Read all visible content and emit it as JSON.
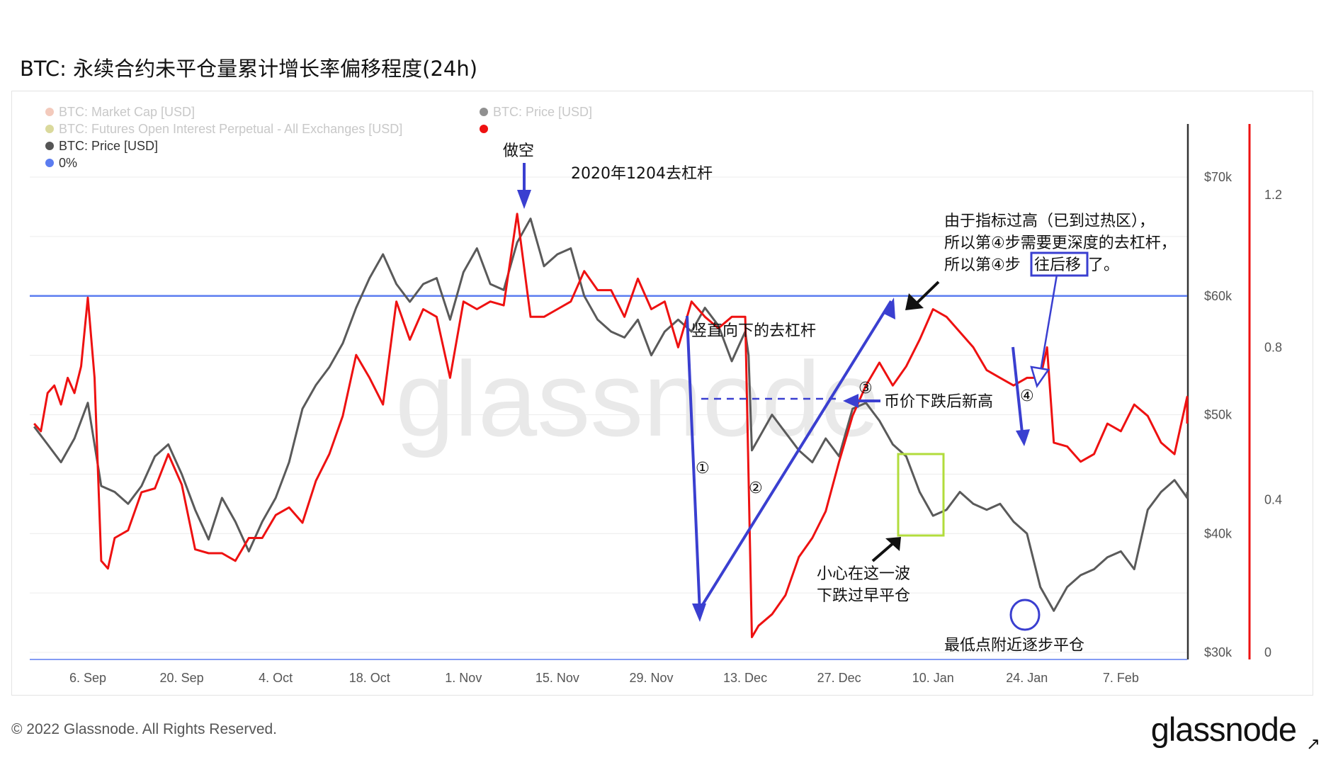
{
  "title": "BTC: 永续合约未平仓量累计增长率偏移程度(24h)",
  "footer": {
    "copyright": "© 2022 Glassnode. All Rights Reserved.",
    "brand": "glassnode"
  },
  "watermark": "glassnode",
  "legend": {
    "items": [
      {
        "label": "BTC: Market Cap [USD]",
        "color": "#e8957a",
        "faded": true
      },
      {
        "label": "BTC: Futures Open Interest Perpetual - All Exchanges [USD]",
        "color": "#b6b43a",
        "faded": true
      },
      {
        "label": "BTC: Price [USD]",
        "color": "#555555",
        "faded": false
      },
      {
        "label": "0%",
        "color": "#5b7cf0",
        "faded": false
      },
      {
        "label": "BTC: Price [USD]",
        "color": "#222222",
        "faded": true
      },
      {
        "label": "",
        "color": "#ee1111",
        "faded": false
      }
    ]
  },
  "colors": {
    "price": "#5a5a5a",
    "indicator": "#ee1111",
    "zero_line": "#5b7cf0",
    "annotation": "#3a3fd0",
    "box": "#b2dc3c"
  },
  "annotations": {
    "main_title": "2020年1204去杠杆",
    "short": "做空",
    "vertical": "竖直向下的去杠杆",
    "new_high": "币价下跌后新高",
    "note_line1": "由于指标过高（已到过热区），",
    "note_line2": "所以第④步需要更深度的去杠杆，",
    "note_line3": "所以第④步",
    "note_highlight": "往后移",
    "note_line3_end": "了。",
    "careful_line1": "小心在这一波",
    "careful_line2": "下跌过早平仓",
    "lowest": "最低点附近逐步平仓",
    "step1": "①",
    "step2": "②",
    "step3": "③",
    "step4": "④"
  },
  "chart_data": {
    "type": "line",
    "x_ticks": [
      "6. Sep",
      "20. Sep",
      "4. Oct",
      "18. Oct",
      "1. Nov",
      "15. Nov",
      "29. Nov",
      "13. Dec",
      "27. Dec",
      "10. Jan",
      "24. Jan",
      "7. Feb"
    ],
    "x_range_days": [
      -8,
      166
    ],
    "y_left_ticks": [
      "$70k",
      "$60k",
      "$50k",
      "$40k",
      "$30k"
    ],
    "y_left_range": [
      30000,
      70000
    ],
    "y_right_ticks": [
      "1.2",
      "0.8",
      "0.4",
      "0"
    ],
    "y_right_range": [
      0,
      1.2
    ],
    "zero_line_value": 60000,
    "series": [
      {
        "name": "BTC: Price [USD]",
        "axis": "left",
        "color": "#5a5a5a",
        "x": [
          -8,
          -6,
          -4,
          -2,
          0,
          2,
          4,
          6,
          8,
          10,
          12,
          14,
          16,
          18,
          20,
          22,
          24,
          26,
          28,
          30,
          32,
          34,
          36,
          38,
          40,
          42,
          44,
          46,
          48,
          50,
          52,
          54,
          56,
          58,
          60,
          62,
          64,
          66,
          68,
          70,
          72,
          74,
          76,
          78,
          80,
          82,
          84,
          86,
          88,
          90,
          92,
          94,
          96,
          98,
          98.5,
          99,
          100,
          102,
          104,
          106,
          108,
          110,
          112,
          114,
          116,
          118,
          120,
          122,
          124,
          126,
          128,
          130,
          132,
          134,
          136,
          138,
          140,
          142,
          144,
          146,
          148,
          150,
          152,
          154,
          156,
          158,
          160,
          162,
          164,
          166
        ],
        "y": [
          49000,
          47500,
          46000,
          48000,
          51000,
          44000,
          43500,
          42500,
          44000,
          46500,
          47500,
          45000,
          42000,
          39500,
          43000,
          41000,
          38500,
          41000,
          43000,
          46000,
          50500,
          52500,
          54000,
          56000,
          59000,
          61500,
          63500,
          61000,
          59500,
          61000,
          61500,
          58000,
          62000,
          64000,
          61000,
          60500,
          64500,
          66500,
          62500,
          63500,
          64000,
          60000,
          58000,
          57000,
          56500,
          58000,
          55000,
          57000,
          58000,
          57000,
          59000,
          57500,
          54500,
          57000,
          55000,
          47000,
          48000,
          50000,
          48500,
          47000,
          46000,
          48000,
          46500,
          50500,
          51000,
          49500,
          47500,
          46500,
          43500,
          41500,
          42000,
          43500,
          42500,
          42000,
          42500,
          41000,
          40000,
          35500,
          33500,
          35500,
          36500,
          37000,
          38000,
          38500,
          37000,
          42000,
          43500,
          44500,
          43000,
          43500
        ]
      },
      {
        "name": "",
        "axis": "right",
        "color": "#ee1111",
        "x": [
          -8,
          -7,
          -6,
          -5,
          -4,
          -3,
          -2,
          -1,
          0,
          1,
          2,
          3,
          4,
          6,
          8,
          10,
          12,
          14,
          16,
          18,
          20,
          22,
          24,
          26,
          28,
          30,
          32,
          34,
          36,
          38,
          40,
          42,
          44,
          46,
          48,
          50,
          52,
          54,
          56,
          58,
          60,
          62,
          64,
          66,
          68,
          70,
          72,
          74,
          76,
          78,
          80,
          82,
          84,
          86,
          88,
          90,
          92,
          94,
          96,
          98,
          99,
          100,
          102,
          104,
          106,
          108,
          110,
          112,
          114,
          116,
          118,
          120,
          122,
          124,
          126,
          128,
          130,
          132,
          134,
          136,
          138,
          140,
          142,
          143,
          144,
          146,
          148,
          150,
          152,
          154,
          156,
          158,
          160,
          162,
          164,
          166
        ],
        "y": [
          0.6,
          0.58,
          0.68,
          0.7,
          0.65,
          0.72,
          0.68,
          0.75,
          0.93,
          0.72,
          0.24,
          0.22,
          0.3,
          0.32,
          0.42,
          0.43,
          0.52,
          0.44,
          0.27,
          0.26,
          0.26,
          0.24,
          0.3,
          0.3,
          0.36,
          0.38,
          0.34,
          0.45,
          0.52,
          0.62,
          0.78,
          0.72,
          0.65,
          0.92,
          0.82,
          0.9,
          0.88,
          0.72,
          0.92,
          0.9,
          0.92,
          0.91,
          1.15,
          0.88,
          0.88,
          0.9,
          0.92,
          1.0,
          0.95,
          0.95,
          0.88,
          0.98,
          0.9,
          0.92,
          0.8,
          0.92,
          0.88,
          0.85,
          0.88,
          0.88,
          0.04,
          0.07,
          0.1,
          0.15,
          0.25,
          0.3,
          0.37,
          0.5,
          0.62,
          0.7,
          0.76,
          0.7,
          0.75,
          0.82,
          0.9,
          0.88,
          0.84,
          0.8,
          0.74,
          0.72,
          0.7,
          0.72,
          0.72,
          0.8,
          0.55,
          0.54,
          0.5,
          0.52,
          0.6,
          0.58,
          0.65,
          0.62,
          0.55,
          0.52,
          0.67,
          0.6
        ]
      }
    ]
  }
}
